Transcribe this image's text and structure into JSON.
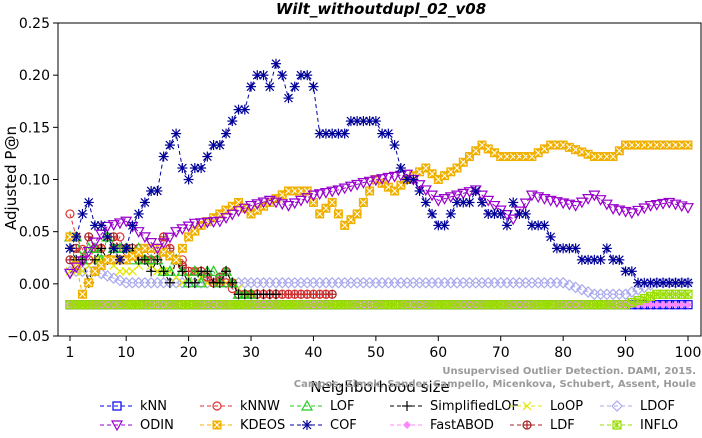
{
  "chart_data": {
    "type": "line",
    "title": "Wilt_withoutdupl_02_v08",
    "xlabel": "Neighborhood size",
    "ylabel": "Adjusted P@n",
    "xlim": [
      0,
      100
    ],
    "ylim": [
      -0.05,
      0.25
    ],
    "xticks": [
      "1",
      "10",
      "20",
      "30",
      "40",
      "50",
      "60",
      "70",
      "80",
      "90",
      "100"
    ],
    "yticks": [
      "−0.05",
      "0.00",
      "0.05",
      "0.10",
      "0.15",
      "0.20",
      "0.25"
    ],
    "grid": false,
    "legend_position": "bottom",
    "watermark": [
      "Campos, Zimek, Sander, Campello, Micenkova, Schubert, Assent, Houle",
      "Unsupervised Outlier Detection. DAMI, 2015."
    ],
    "series": [
      {
        "name": "kNN",
        "color": "#0000ee",
        "marker": "square",
        "x": [
          1,
          10,
          20,
          30,
          40,
          50,
          60,
          70,
          80,
          90,
          100
        ],
        "y": [
          -0.02,
          -0.02,
          -0.02,
          -0.02,
          -0.02,
          -0.02,
          -0.02,
          -0.02,
          -0.02,
          -0.02,
          -0.02
        ]
      },
      {
        "name": "kNNW",
        "color": "#dd3333",
        "marker": "circle",
        "x": [
          1,
          2,
          3,
          4,
          5,
          6,
          7,
          8,
          9,
          10,
          11,
          12,
          13,
          14,
          15,
          16,
          17,
          18,
          19,
          20,
          22,
          24,
          26,
          28,
          30,
          35,
          40,
          42
        ],
        "y": [
          0.067,
          0.045,
          0.033,
          0.023,
          0.034,
          0.034,
          0.045,
          0.034,
          0.045,
          0.023,
          0.034,
          0.034,
          0.034,
          0.023,
          0.023,
          0.045,
          0.034,
          0.023,
          0.023,
          0.012,
          0.012,
          0.001,
          0.001,
          -0.01,
          -0.01,
          -0.01,
          -0.01,
          -0.01
        ]
      },
      {
        "name": "LOF",
        "color": "#22cc22",
        "marker": "triangle",
        "x": [
          1,
          2,
          3,
          4,
          5,
          6,
          7,
          8,
          9,
          10,
          11,
          12,
          13,
          14,
          15,
          16,
          17,
          18,
          19,
          20,
          21,
          22,
          23,
          24,
          25,
          26,
          27,
          28,
          29,
          30
        ],
        "y": [
          0.045,
          0.045,
          0.023,
          0.034,
          0.034,
          0.023,
          0.045,
          0.034,
          0.034,
          0.034,
          0.023,
          0.034,
          0.023,
          0.023,
          0.023,
          0.012,
          0.012,
          0.023,
          0.012,
          0.001,
          0.012,
          0.001,
          0.012,
          0.012,
          0.001,
          0.012,
          0.001,
          -0.01,
          -0.01,
          -0.01
        ]
      },
      {
        "name": "SimplifiedLOF",
        "color": "#000000",
        "marker": "plus",
        "x": [
          1,
          2,
          3,
          4,
          5,
          6,
          7,
          8,
          9,
          10,
          11,
          12,
          13,
          14,
          15,
          16,
          17,
          18,
          19,
          20,
          21,
          22,
          23,
          24,
          25,
          26,
          27,
          28,
          29,
          30,
          31,
          32,
          33,
          34
        ],
        "y": [
          0.034,
          0.023,
          0.023,
          0.001,
          0.023,
          0.034,
          0.023,
          0.034,
          0.023,
          0.034,
          0.034,
          0.023,
          0.023,
          0.012,
          0.023,
          0.012,
          0.001,
          0.023,
          0.012,
          0.001,
          0.001,
          0.012,
          0.012,
          0.001,
          0.001,
          0.012,
          0.001,
          -0.01,
          -0.01,
          -0.01,
          -0.01,
          -0.01,
          -0.01,
          -0.01
        ]
      },
      {
        "name": "LoOP",
        "color": "#e6e600",
        "marker": "x",
        "x": [
          1,
          3,
          5,
          7,
          9,
          11,
          13,
          15,
          17,
          19,
          21,
          23,
          25,
          27,
          29,
          30
        ],
        "y": [
          0.012,
          0.012,
          0.023,
          0.023,
          0.012,
          0.012,
          0.023,
          0.012,
          0.012,
          0.001,
          0.012,
          0.001,
          0.001,
          0.001,
          -0.01,
          -0.01
        ]
      },
      {
        "name": "LDOF",
        "color": "#aaaaee",
        "marker": "diamond",
        "x": [
          1,
          5,
          10,
          15,
          20,
          25,
          30,
          31,
          35,
          40,
          45,
          50,
          55,
          60,
          65,
          70,
          75,
          80,
          85,
          90,
          95,
          100
        ],
        "y": [
          0.012,
          0.012,
          0.001,
          0.001,
          0.001,
          0.001,
          0.001,
          0.001,
          0.001,
          0.001,
          0.001,
          0.001,
          0.001,
          0.001,
          0.001,
          0.001,
          0.001,
          0.001,
          -0.01,
          -0.01,
          0.001,
          0.001
        ]
      },
      {
        "name": "ODIN",
        "color": "#9900cc",
        "marker": "triangle-down",
        "x": [
          1,
          3,
          5,
          7,
          10,
          13,
          15,
          18,
          21,
          25,
          28,
          30,
          33,
          36,
          40,
          44,
          48,
          52,
          55,
          57,
          60,
          63,
          66,
          69,
          72,
          75,
          78,
          82,
          85,
          88,
          91,
          94,
          97,
          100
        ],
        "y": [
          0.01,
          0.022,
          0.04,
          0.055,
          0.06,
          0.045,
          0.034,
          0.05,
          0.058,
          0.06,
          0.07,
          0.075,
          0.08,
          0.075,
          0.085,
          0.09,
          0.097,
          0.102,
          0.105,
          0.095,
          0.08,
          0.085,
          0.09,
          0.075,
          0.062,
          0.085,
          0.08,
          0.075,
          0.085,
          0.072,
          0.068,
          0.075,
          0.078,
          0.073
        ]
      },
      {
        "name": "KDEOS",
        "color": "#f0b000",
        "marker": "boxed-x",
        "x": [
          1,
          3,
          5,
          7,
          10,
          13,
          15,
          18,
          20,
          22,
          25,
          28,
          30,
          33,
          36,
          39,
          41,
          43,
          45,
          47,
          50,
          53,
          55,
          58,
          60,
          63,
          65,
          67,
          70,
          75,
          78,
          80,
          85,
          88,
          90,
          95,
          100
        ],
        "y": [
          0.045,
          -0.01,
          0.012,
          0.023,
          0.023,
          0.034,
          0.034,
          0.023,
          0.045,
          0.056,
          0.067,
          0.078,
          0.067,
          0.078,
          0.089,
          0.089,
          0.067,
          0.078,
          0.056,
          0.067,
          0.1,
          0.089,
          0.1,
          0.111,
          0.1,
          0.111,
          0.122,
          0.133,
          0.122,
          0.122,
          0.133,
          0.133,
          0.122,
          0.122,
          0.133,
          0.133,
          0.133
        ]
      },
      {
        "name": "COF",
        "color": "#000099",
        "marker": "asterisk",
        "x": [
          1,
          2,
          3,
          4,
          5,
          6,
          7,
          8,
          9,
          10,
          11,
          12,
          13,
          14,
          15,
          16,
          17,
          18,
          19,
          20,
          21,
          22,
          23,
          24,
          25,
          26,
          27,
          28,
          29,
          30,
          31,
          32,
          33,
          34,
          35,
          36,
          37,
          38,
          39,
          40,
          41,
          42,
          43,
          44,
          45,
          46,
          47,
          48,
          49,
          50,
          51,
          52,
          53,
          54,
          55,
          56,
          57,
          58,
          59,
          60,
          61,
          62,
          63,
          64,
          65,
          66,
          67,
          68,
          69,
          70,
          71,
          72,
          73,
          74,
          75,
          76,
          77,
          78,
          79,
          80,
          81,
          82,
          83,
          84,
          85,
          86,
          87,
          88,
          89,
          90,
          91,
          92,
          93,
          94,
          95,
          96,
          97,
          98,
          99,
          100
        ],
        "y": [
          0.034,
          0.045,
          0.067,
          0.078,
          0.056,
          0.056,
          0.045,
          0.034,
          0.023,
          0.034,
          0.056,
          0.067,
          0.078,
          0.089,
          0.089,
          0.122,
          0.133,
          0.144,
          0.111,
          0.1,
          0.111,
          0.111,
          0.122,
          0.133,
          0.133,
          0.144,
          0.156,
          0.167,
          0.167,
          0.189,
          0.2,
          0.2,
          0.189,
          0.211,
          0.2,
          0.178,
          0.189,
          0.2,
          0.2,
          0.189,
          0.144,
          0.144,
          0.144,
          0.144,
          0.144,
          0.156,
          0.156,
          0.156,
          0.156,
          0.156,
          0.144,
          0.144,
          0.133,
          0.111,
          0.1,
          0.1,
          0.089,
          0.078,
          0.067,
          0.056,
          0.056,
          0.067,
          0.078,
          0.078,
          0.078,
          0.089,
          0.078,
          0.067,
          0.067,
          0.067,
          0.056,
          0.078,
          0.067,
          0.067,
          0.056,
          0.056,
          0.056,
          0.045,
          0.034,
          0.034,
          0.034,
          0.034,
          0.023,
          0.023,
          0.023,
          0.023,
          0.034,
          0.023,
          0.023,
          0.012,
          0.012,
          0.001,
          0.001,
          0.001,
          0.001,
          0.001,
          0.001,
          0.001,
          0.001,
          0.001
        ]
      },
      {
        "name": "FastABOD",
        "color": "#ff88ff",
        "marker": "diamond-filled",
        "x": [
          1,
          10,
          20,
          30,
          40,
          50,
          60,
          70,
          80,
          90,
          100
        ],
        "y": [
          -0.02,
          -0.02,
          -0.02,
          -0.02,
          -0.02,
          -0.02,
          -0.02,
          -0.02,
          -0.02,
          -0.02,
          -0.02
        ]
      },
      {
        "name": "LDF",
        "color": "#aa2222",
        "marker": "circle-plus",
        "x": [
          1,
          2,
          3,
          4,
          5,
          6,
          7,
          8,
          9,
          10,
          12,
          14,
          16,
          18,
          20,
          22,
          24,
          26,
          28,
          30,
          33,
          36,
          40,
          43
        ],
        "y": [
          0.023,
          0.034,
          0.023,
          0.045,
          0.034,
          0.034,
          0.023,
          0.045,
          0.034,
          0.034,
          0.023,
          0.023,
          0.045,
          0.023,
          0.012,
          0.012,
          0.001,
          0.012,
          -0.01,
          -0.01,
          -0.01,
          -0.01,
          -0.01,
          -0.01
        ]
      },
      {
        "name": "INFLO",
        "color": "#99dd00",
        "marker": "boxed-star",
        "x": [
          1,
          10,
          20,
          30,
          40,
          50,
          60,
          70,
          80,
          90,
          95,
          96,
          97,
          98,
          99,
          100
        ],
        "y": [
          -0.02,
          -0.02,
          -0.02,
          -0.02,
          -0.02,
          -0.02,
          -0.02,
          -0.02,
          -0.02,
          -0.02,
          -0.01,
          -0.01,
          -0.01,
          -0.01,
          -0.01,
          -0.01
        ]
      }
    ]
  }
}
